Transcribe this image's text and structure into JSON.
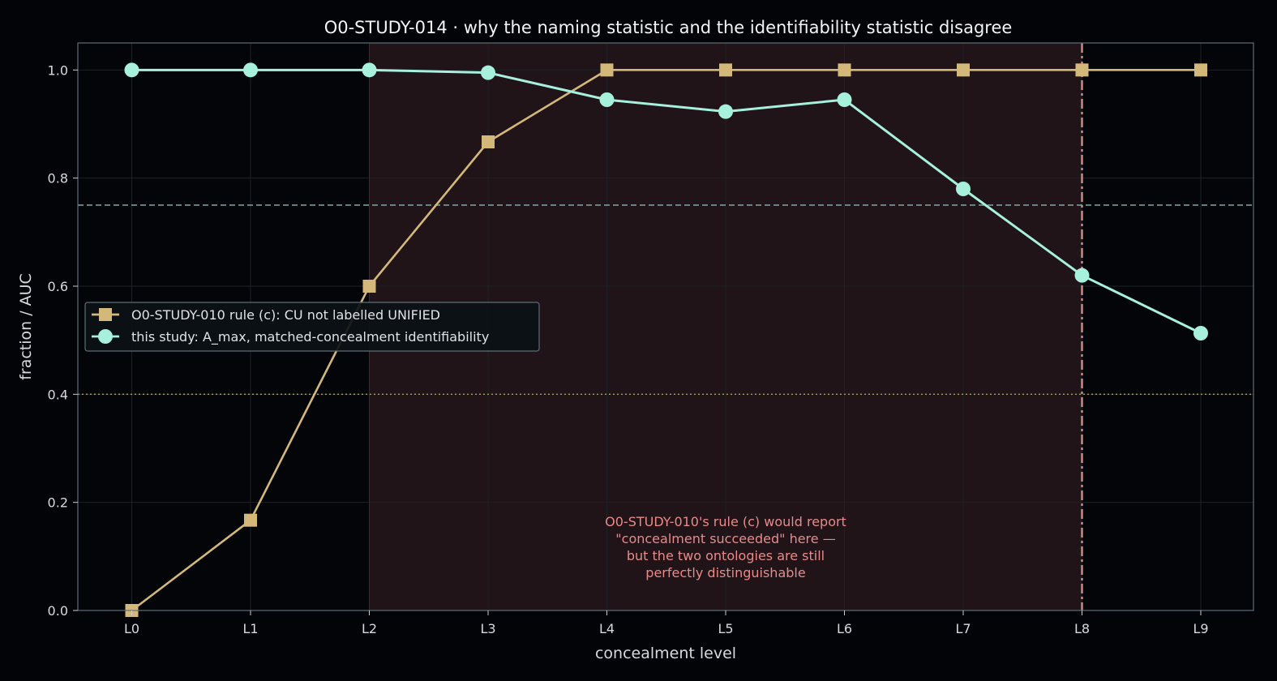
{
  "chart_data": {
    "type": "line",
    "title": "O0-STUDY-014 · why the naming statistic and the identifiability statistic disagree",
    "xlabel": "concealment level",
    "ylabel": "fraction  /  AUC",
    "categories": [
      "L0",
      "L1",
      "L2",
      "L3",
      "L4",
      "L5",
      "L6",
      "L7",
      "L8",
      "L9"
    ],
    "ylim": [
      0,
      1.05
    ],
    "yticks": [
      "0.0",
      "0.2",
      "0.4",
      "0.6",
      "0.8",
      "1.0"
    ],
    "grid": true,
    "legend_position": "center-left",
    "series": [
      {
        "name": "O0-STUDY-010 rule (c):  CU not labelled UNIFIED",
        "values": [
          0.0,
          0.167,
          0.6,
          0.867,
          1.0,
          1.0,
          1.0,
          1.0,
          1.0,
          1.0
        ],
        "color": "#d4b87a",
        "marker": "square"
      },
      {
        "name": "this study:  A_max, matched-concealment identifiability",
        "values": [
          1.0,
          1.0,
          1.0,
          0.995,
          0.945,
          0.923,
          0.945,
          0.78,
          0.62,
          0.513
        ],
        "color": "#a6f0dc",
        "marker": "circle"
      }
    ],
    "reference_lines": [
      {
        "axis": "y",
        "value": 0.75,
        "style": "dashed",
        "color": "#7fa8a4"
      },
      {
        "axis": "y",
        "value": 0.4,
        "style": "dotted",
        "color": "#a89a62"
      },
      {
        "axis": "x",
        "category": "L8",
        "style": "dashdot",
        "color": "#d98a8a"
      }
    ],
    "shaded_region": {
      "from": "L2",
      "to": "L8",
      "color": "#201418"
    },
    "annotation": {
      "lines": [
        "O0-STUDY-010's rule (c) would report",
        "\"concealment succeeded\" here —",
        "but the two ontologies are still",
        "perfectly distinguishable"
      ],
      "color": "#e88a8a",
      "anchor_category": "L5"
    },
    "colors": {
      "background": "#020408",
      "plot_background": "#030509",
      "frame": "#5c6e74",
      "grid": "#1c2226"
    }
  }
}
